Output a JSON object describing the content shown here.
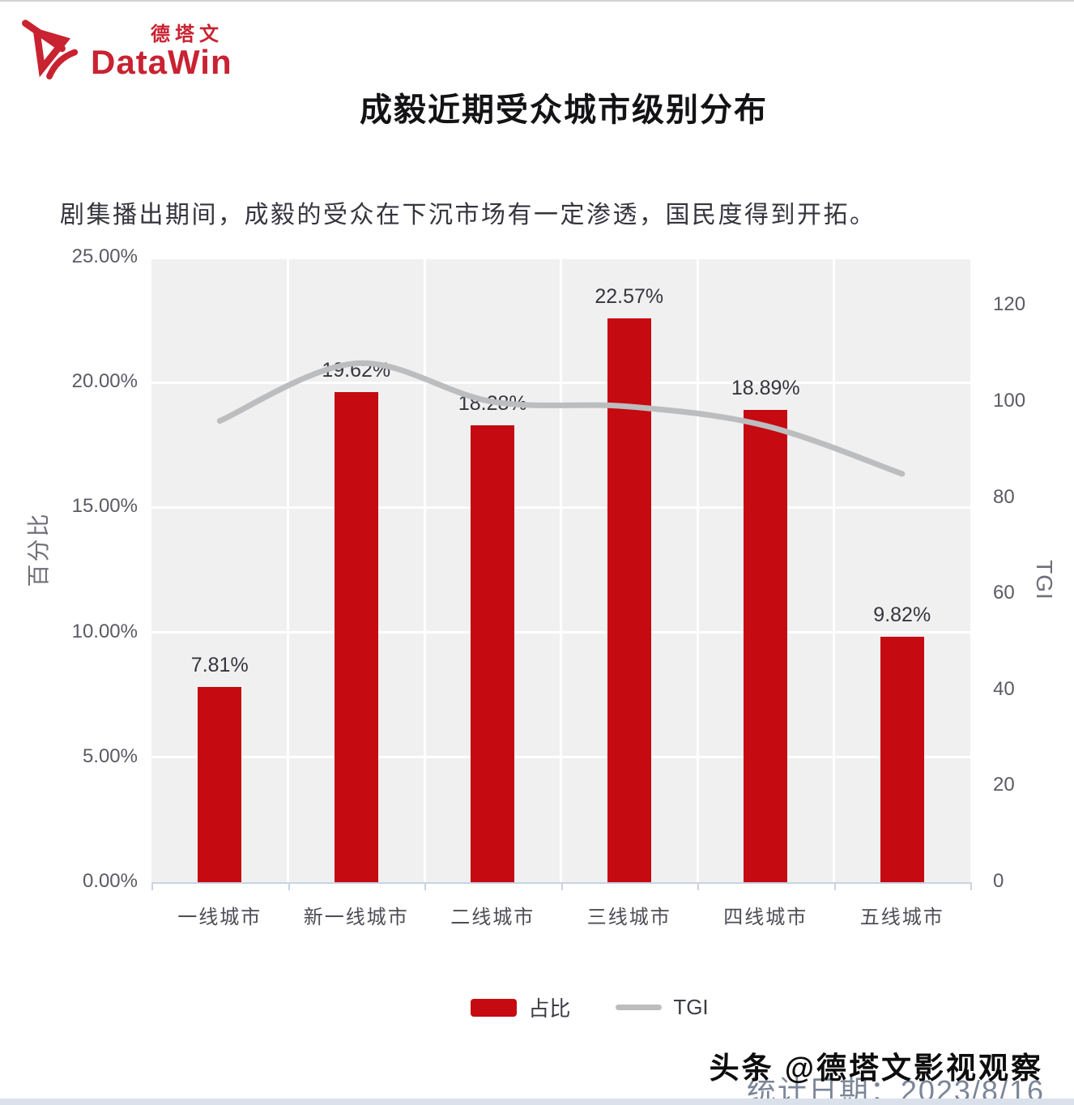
{
  "header": {
    "logo_cn": "德塔文",
    "logo_en": "DataWin",
    "title": "成毅近期受众城市级别分布"
  },
  "subtitle": "剧集播出期间，成毅的受众在下沉市场有一定渗透，国民度得到开拓。",
  "chart_data": {
    "type": "bar+line",
    "title": "成毅近期受众城市级别分布",
    "categories": [
      "一线城市",
      "新一线城市",
      "二线城市",
      "三线城市",
      "四线城市",
      "五线城市"
    ],
    "series": [
      {
        "name": "占比",
        "type": "bar",
        "axis": "left",
        "color": "#c50a11",
        "values": [
          7.81,
          19.62,
          18.28,
          22.57,
          18.89,
          9.82
        ],
        "labels": [
          "7.81%",
          "19.62%",
          "18.28%",
          "22.57%",
          "18.89%",
          "9.82%"
        ]
      },
      {
        "name": "TGI",
        "type": "line",
        "axis": "right",
        "color": "#bcbdbf",
        "values": [
          96,
          108,
          100,
          99,
          95,
          85
        ]
      }
    ],
    "left_axis": {
      "title": "百分比",
      "range": [
        0,
        25
      ],
      "tick_values": [
        0,
        5,
        10,
        15,
        20,
        25
      ],
      "tick_labels": [
        "0.00%",
        "5.00%",
        "10.00%",
        "15.00%",
        "20.00%",
        "25.00%"
      ]
    },
    "right_axis": {
      "title": "TGI",
      "range": [
        0,
        130
      ],
      "tick_values": [
        0,
        20,
        40,
        60,
        80,
        100,
        120
      ],
      "tick_labels": [
        "0",
        "20",
        "40",
        "60",
        "80",
        "100",
        "120"
      ]
    },
    "legend": [
      "占比",
      "TGI"
    ],
    "grid": true,
    "plot_background": "#f0f0f1"
  },
  "footer": {
    "watermark": "头条 @德塔文影视观察",
    "stat_date": "统计日期：2023/8/16"
  }
}
